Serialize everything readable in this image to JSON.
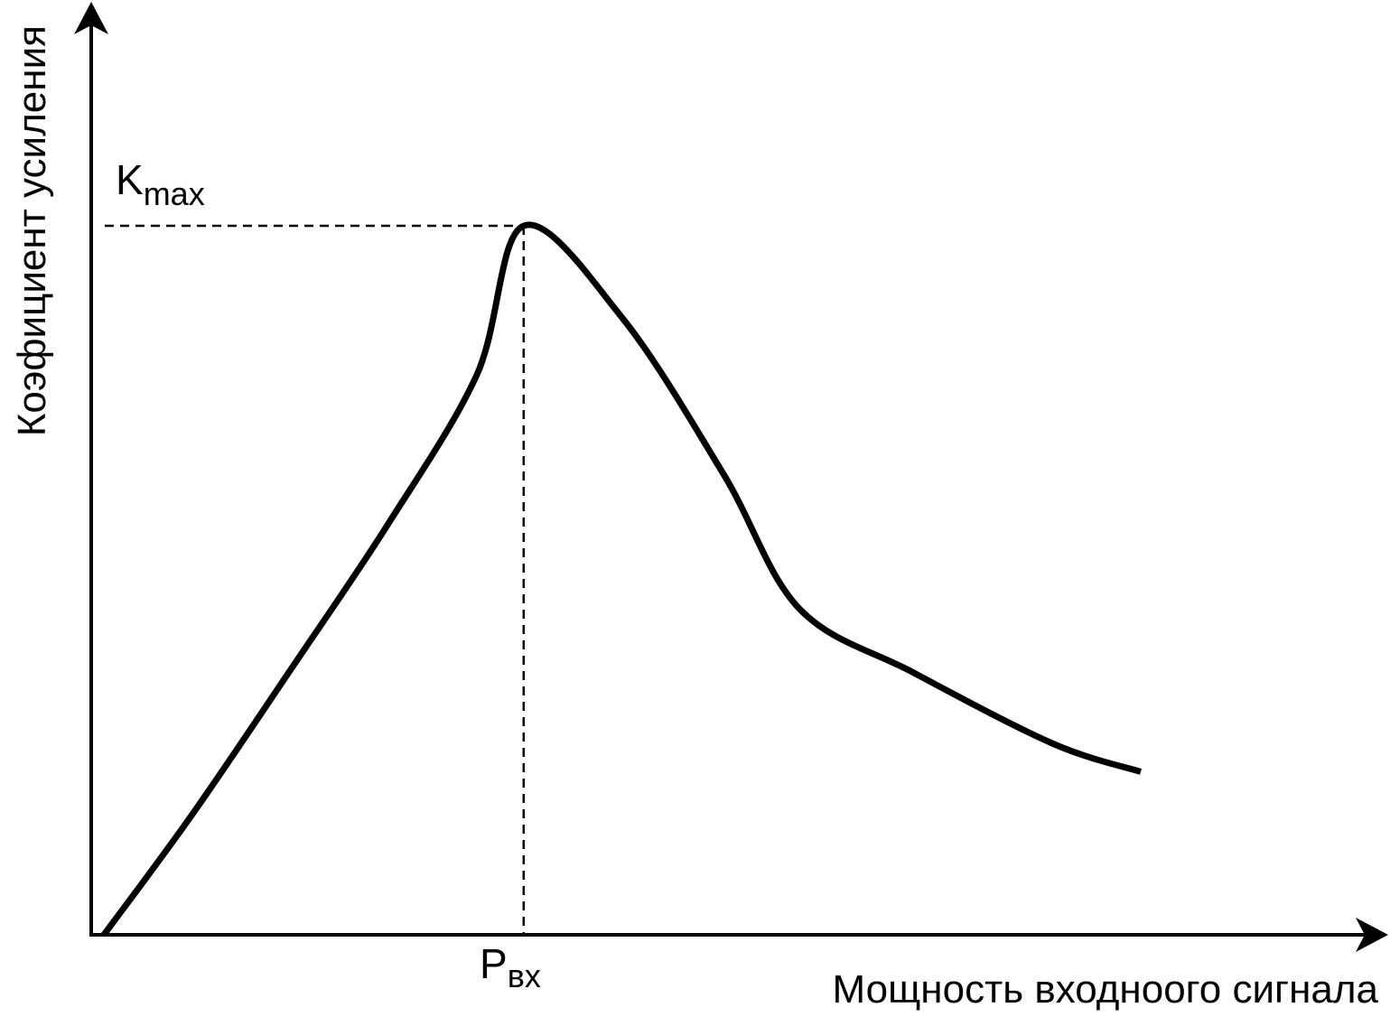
{
  "chart_data": {
    "type": "line",
    "title": "",
    "xlabel": "Мощность входноого сигнала",
    "ylabel": "Коэфициент усиления",
    "grid": false,
    "legend": "none",
    "xlim": [
      0,
      100
    ],
    "ylim": [
      0,
      100
    ],
    "series": [
      {
        "values": [
          {
            "x": 1,
            "y": 0
          },
          {
            "x": 8,
            "y": 17
          },
          {
            "x": 16,
            "y": 38
          },
          {
            "x": 23.5,
            "y": 58
          },
          {
            "x": 30.5,
            "y": 79
          },
          {
            "x": 34.2,
            "y": 100
          },
          {
            "x": 42,
            "y": 87
          },
          {
            "x": 50,
            "y": 65
          },
          {
            "x": 56,
            "y": 46
          },
          {
            "x": 65,
            "y": 37
          },
          {
            "x": 76,
            "y": 27
          },
          {
            "x": 83,
            "y": 23
          }
        ]
      }
    ],
    "annotations": {
      "peak_x": 34.2,
      "peak_y": 100,
      "kmax_main": "K",
      "kmax_sub": "max",
      "pvx_main": "P",
      "pvx_sub": "вх"
    },
    "colors": {
      "line": "#000000",
      "axis": "#000000",
      "background": "#ffffff"
    }
  }
}
